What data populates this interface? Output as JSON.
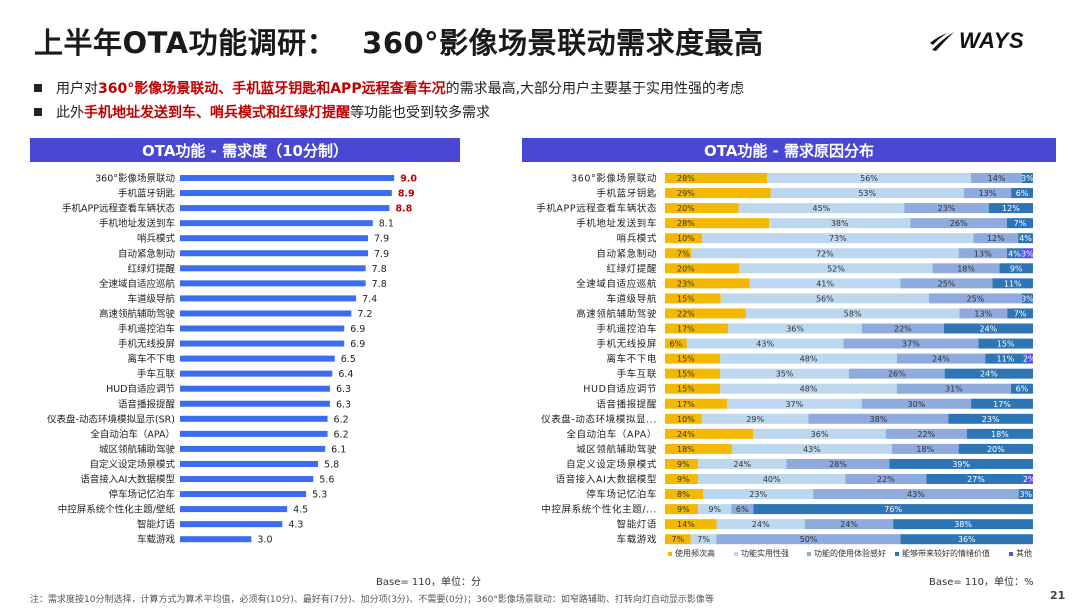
{
  "header": {
    "title_left": "上半年OTA功能调研：",
    "title_right": "360°影像场景联动需求度最高",
    "logo_text": "WAYS",
    "logo_icon": "ways-swoosh-icon"
  },
  "bullets": [
    {
      "segments": [
        {
          "text": "用户对",
          "hl": false
        },
        {
          "text": "360°影像场景联动、手机蓝牙钥匙和APP远程查看车况",
          "hl": true
        },
        {
          "text": "的需求最高,大部分用户主要基于实用性强的考虑",
          "hl": false
        }
      ]
    },
    {
      "segments": [
        {
          "text": "此外",
          "hl": false
        },
        {
          "text": "手机地址发送到车、哨兵模式和红绿灯提醒",
          "hl": true
        },
        {
          "text": "等功能也受到较多需求",
          "hl": false
        }
      ]
    }
  ],
  "colors": {
    "header_bg": "#4a46d6",
    "bar_blue": "#3a6df0",
    "highlight_red": "#c00000",
    "seg_colors": [
      "#f5b800",
      "#bdd7ee",
      "#8faadc",
      "#2e75b6",
      "#5b4ee6"
    ]
  },
  "left_panel": {
    "header": "OTA功能 - 需求度（10分制）",
    "base_note": "Base= 110，单位：分"
  },
  "right_panel": {
    "header": "OTA功能 - 需求原因分布",
    "base_note": "Base= 110，单位：%"
  },
  "chart_data": [
    {
      "type": "bar",
      "orientation": "horizontal",
      "title": "OTA功能 - 需求度（10分制）",
      "unit": "分",
      "xlim": [
        0,
        10
      ],
      "highlight_top_n": 3,
      "categories": [
        "360°影像场景联动",
        "手机蓝牙钥匙",
        "手机APP远程查看车辆状态",
        "手机地址发送到车",
        "哨兵模式",
        "自动紧急制动",
        "红绿灯提醒",
        "全速域自适应巡航",
        "车道级导航",
        "高速领航辅助驾驶",
        "手机遥控泊车",
        "手机无线投屏",
        "离车不下电",
        "手车互联",
        "HUD自适应调节",
        "语音播报提醒",
        "仪表盘-动态环境模拟显示(SR)",
        "全自动泊车（APA）",
        "城区领航辅助驾驶",
        "自定义设定场景模式",
        "语音接入AI大数据模型",
        "停车场记忆泊车",
        "中控屏系统个性化主题/壁纸",
        "智能灯语",
        "车载游戏"
      ],
      "values": [
        9.0,
        8.9,
        8.8,
        8.1,
        7.9,
        7.9,
        7.8,
        7.8,
        7.4,
        7.2,
        6.9,
        6.9,
        6.5,
        6.4,
        6.3,
        6.3,
        6.2,
        6.2,
        6.1,
        5.8,
        5.6,
        5.3,
        4.5,
        4.3,
        3.0
      ]
    },
    {
      "type": "bar",
      "orientation": "horizontal",
      "stacked": "percent",
      "title": "OTA功能 - 需求原因分布",
      "unit": "%",
      "categories": [
        "360°影像场景联动",
        "手机蓝牙钥匙",
        "手机APP远程查看车辆状态",
        "手机地址发送到车",
        "哨兵模式",
        "自动紧急制动",
        "红绿灯提醒",
        "全速域自适应巡航",
        "车道级导航",
        "高速领航辅助驾驶",
        "手机遥控泊车",
        "手机无线投屏",
        "离车不下电",
        "手车互联",
        "HUD自适应调节",
        "语音播报提醒",
        "仪表盘-动态环境模拟显...",
        "全自动泊车（APA）",
        "城区领航辅助驾驶",
        "自定义设定场景模式",
        "语音接入AI大数据模型",
        "停车场记忆泊车",
        "中控屏系统个性化主题/...",
        "智能灯语",
        "车载游戏"
      ],
      "series": [
        {
          "name": "使用频次高",
          "values": [
            28,
            29,
            20,
            28,
            10,
            7,
            20,
            23,
            15,
            22,
            17,
            6,
            15,
            15,
            15,
            17,
            10,
            24,
            18,
            9,
            9,
            8,
            9,
            14,
            7
          ]
        },
        {
          "name": "功能实用性强",
          "values": [
            56,
            53,
            45,
            38,
            73,
            72,
            52,
            41,
            56,
            58,
            36,
            43,
            48,
            35,
            48,
            37,
            29,
            36,
            43,
            24,
            40,
            23,
            9,
            24,
            7
          ]
        },
        {
          "name": "功能的使用体验感好",
          "values": [
            14,
            13,
            23,
            26,
            12,
            13,
            18,
            25,
            25,
            13,
            22,
            37,
            24,
            26,
            31,
            30,
            38,
            22,
            18,
            28,
            22,
            43,
            6,
            24,
            50
          ]
        },
        {
          "name": "能够带来较好的情绪价值",
          "values": [
            3,
            6,
            12,
            7,
            4,
            4,
            9,
            11,
            3,
            7,
            24,
            15,
            11,
            24,
            6,
            17,
            23,
            18,
            20,
            39,
            27,
            3,
            76,
            38,
            36
          ]
        },
        {
          "name": "其他",
          "values": [
            0,
            0,
            0,
            0,
            0,
            3,
            0,
            0,
            0,
            0,
            0,
            0,
            2,
            0,
            0,
            0,
            0,
            0,
            0,
            0,
            2,
            0,
            0,
            0,
            0
          ]
        }
      ]
    }
  ],
  "footnote": "注：需求度按10分制选择，计算方式为算术平均值，必须有(10分)、最好有(7分)、加分项(3分)、不需要(0分)；360°影像场景联动：如窄路辅助、打转向灯自动显示影像等",
  "page_number": "21"
}
